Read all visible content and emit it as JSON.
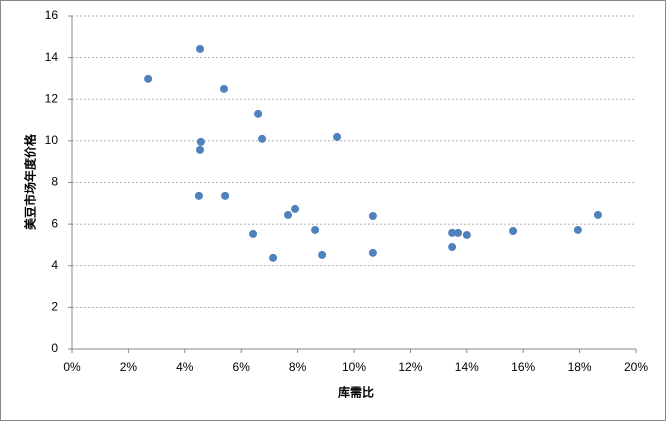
{
  "chart_data": {
    "type": "scatter",
    "x_label": "库需比",
    "y_label": "美豆市场年度价格",
    "series": [
      {
        "color": "#4f81bd",
        "x": [
          2.7,
          4.54,
          4.57,
          4.54,
          4.5,
          5.39,
          5.43,
          6.6,
          6.74,
          6.42,
          7.13,
          7.66,
          7.91,
          8.62,
          8.87,
          9.4,
          10.67,
          10.67,
          13.48,
          13.69,
          13.48,
          14.0,
          15.64,
          17.94,
          18.65
        ],
        "values": [
          12.98,
          14.42,
          9.95,
          9.57,
          7.36,
          12.5,
          7.36,
          11.3,
          10.1,
          5.53,
          4.38,
          6.44,
          6.73,
          5.72,
          4.52,
          10.19,
          6.39,
          4.62,
          5.58,
          5.58,
          4.9,
          5.48,
          5.67,
          5.72,
          6.44
        ]
      }
    ],
    "xlim": [
      0,
      20
    ],
    "xticks": [
      {
        "value": 0,
        "label": "0%"
      },
      {
        "value": 2,
        "label": "2%"
      },
      {
        "value": 4,
        "label": "4%"
      },
      {
        "value": 6,
        "label": "6%"
      },
      {
        "value": 8,
        "label": "8%"
      },
      {
        "value": 10,
        "label": "10%"
      },
      {
        "value": 12,
        "label": "12%"
      },
      {
        "value": 14,
        "label": "14%"
      },
      {
        "value": 16,
        "label": "16%"
      },
      {
        "value": 18,
        "label": "18%"
      },
      {
        "value": 20,
        "label": "20%"
      }
    ],
    "ylim": [
      0,
      16
    ],
    "yticks": [
      0,
      2,
      4,
      6,
      8,
      10,
      12,
      14,
      16
    ],
    "grid": true
  }
}
